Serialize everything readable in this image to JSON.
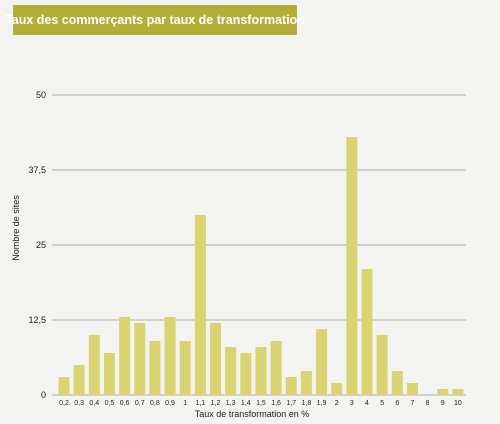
{
  "chart_data": {
    "type": "bar",
    "title": "Taux des commerçants par taux de transformation",
    "xlabel": "Taux de transformation en %",
    "ylabel": "Nombre de sites",
    "ylim": [
      0,
      50
    ],
    "yticks": [
      "0",
      "12,5",
      "25",
      "37,5",
      "50"
    ],
    "grid": true,
    "colors": {
      "bar": "#d8d472",
      "banner": "#b3ae35",
      "grid": "#9a9a9a"
    },
    "categories": [
      "0,2",
      "0,3",
      "0,4",
      "0,5",
      "0,6",
      "0,7",
      "0,8",
      "0,9",
      "1",
      "1,1",
      "1,2",
      "1,3",
      "1,4",
      "1,5",
      "1,6",
      "1,7",
      "1,8",
      "1,9",
      "2",
      "3",
      "4",
      "5",
      "6",
      "7",
      "8",
      "9",
      "10"
    ],
    "values": [
      3,
      5,
      10,
      7,
      13,
      12,
      9,
      13,
      9,
      30,
      12,
      8,
      7,
      8,
      9,
      3,
      4,
      11,
      2,
      43,
      21,
      10,
      4,
      2,
      0,
      1,
      1
    ]
  }
}
